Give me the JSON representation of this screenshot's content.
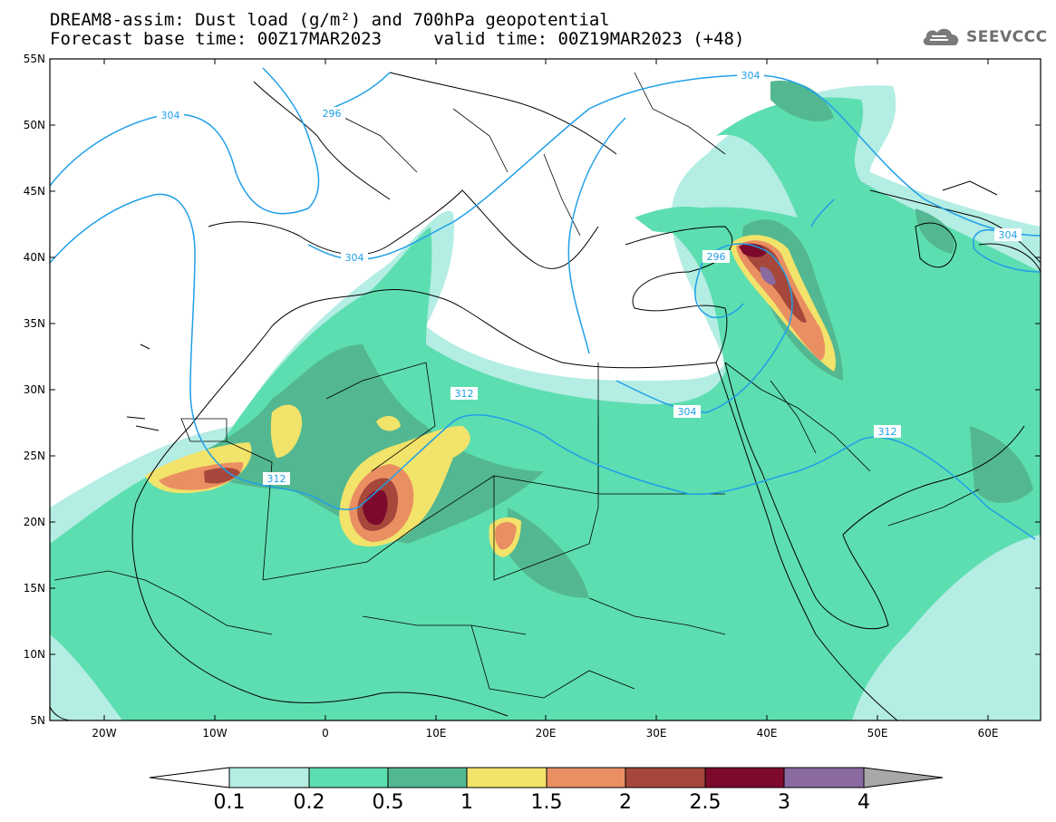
{
  "header": {
    "title_line1": "DREAM8-assim: Dust load (g/m²) and 700hPa geopotential",
    "title_line2": "Forecast base time: 00Z17MAR2023     valid time: 00Z19MAR2023 (+48)"
  },
  "logo": {
    "text": "SEEVCCC",
    "icon": "cloud-icon"
  },
  "axes": {
    "lat_labels": [
      "55N",
      "50N",
      "45N",
      "40N",
      "35N",
      "30N",
      "25N",
      "20N",
      "15N",
      "10N",
      "5N"
    ],
    "lon_labels": [
      "20W",
      "10W",
      "0",
      "10E",
      "20E",
      "30E",
      "40E",
      "50E",
      "60E"
    ]
  },
  "contours": {
    "labels": [
      "304",
      "296",
      "304",
      "304",
      "296",
      "312",
      "304",
      "312",
      "312",
      "304"
    ]
  },
  "colorbar": {
    "ticks": [
      "0.1",
      "0.2",
      "0.5",
      "1",
      "1.5",
      "2",
      "2.5",
      "3",
      "4"
    ],
    "colors": [
      "#ffffff",
      "#b4ede3",
      "#5ddeb0",
      "#53b891",
      "#f2e36a",
      "#ea8f62",
      "#a5483b",
      "#7d0a2c",
      "#8a6aa1",
      "#a8a8a8"
    ]
  },
  "map_colors": {
    "ocean": "#ffffff",
    "coast": "#000000",
    "contour": "#1f9fe8"
  }
}
